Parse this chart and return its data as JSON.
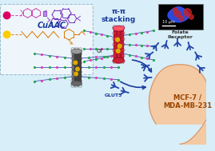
{
  "bg_color": "#d8eef8",
  "box_facecolor": "#eef6fc",
  "box_edgecolor": "#99bbcc",
  "text_cuaac": "CuAAC",
  "text_pistacking": "π-π\nstacking",
  "text_or": "or",
  "text_glut5": "GLUT5",
  "text_folate": "Folate\nReceptor",
  "text_cell": "MCF-7 /\nMDA-MB-231",
  "text_scalebar": "10 μm",
  "arrow_color": "#1a3a9c",
  "polymer_color_blue": "#3344bb",
  "polymer_color_green": "#22aa44",
  "polymer_color_pink": "#dd44aa",
  "cell_color": "#f5c8a0",
  "cell_edge_color": "#d4956a",
  "antibody_color": "#2244aa",
  "molecule1_color": "#cc44aa",
  "molecule2_color": "#7733bb",
  "molecule3_color": "#dd7700",
  "yellow_dot": "#ffcc00",
  "pink_dot": "#dd0066",
  "nanotube_dark": "#444444",
  "nanotube_mid": "#666666",
  "nanotube_light": "#999999",
  "nanotube_red": "#cc2233",
  "gold_color": "#ddaa00",
  "mic_bg": "#000000",
  "mic_blue": "#3355ff",
  "mic_red": "#cc2222"
}
